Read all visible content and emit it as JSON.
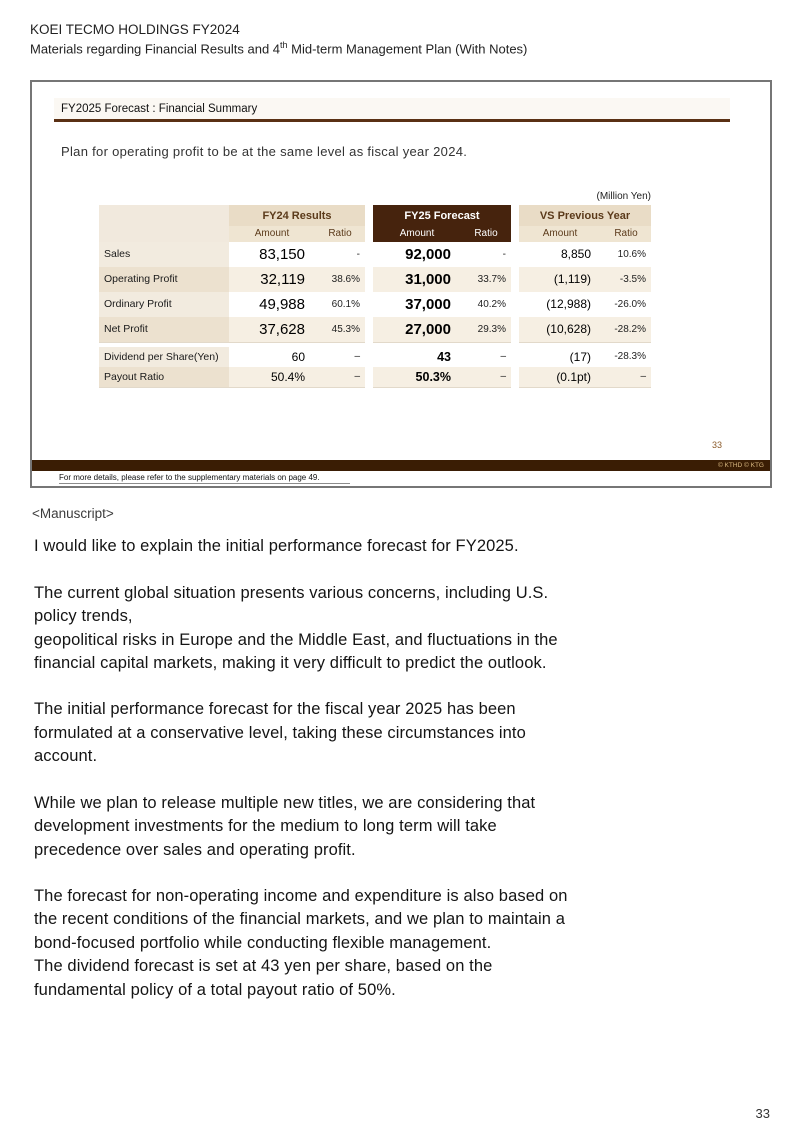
{
  "page": {
    "header_line1": "KOEI TECMO HOLDINGS FY2024",
    "header_line2_pre": "Materials regarding Financial Results and 4",
    "header_line2_sup": "th",
    "header_line2_post": " Mid-term Management Plan (With Notes)",
    "page_number": "33"
  },
  "slide": {
    "title": "FY2025 Forecast : Financial Summary",
    "subtitle": "Plan for operating profit to be at the same level as fiscal year 2024.",
    "unit_label": "(Million Yen)",
    "table": {
      "groups": [
        "FY24 Results",
        "FY25 Forecast",
        "VS Previous Year"
      ],
      "sub_headers": [
        "Amount",
        "Ratio",
        "Amount",
        "Ratio",
        "Amount",
        "Ratio"
      ],
      "rows": [
        {
          "label": "Sales",
          "cells": [
            "83,150",
            "-",
            "92,000",
            "-",
            "8,850",
            "10.6%"
          ]
        },
        {
          "label": "Operating Profit",
          "cells": [
            "32,119",
            "38.6%",
            "31,000",
            "33.7%",
            "(1,119)",
            "-3.5%"
          ]
        },
        {
          "label": "Ordinary Profit",
          "cells": [
            "49,988",
            "60.1%",
            "37,000",
            "40.2%",
            "(12,988)",
            "-26.0%"
          ]
        },
        {
          "label": "Net Profit",
          "cells": [
            "37,628",
            "45.3%",
            "27,000",
            "29.3%",
            "(10,628)",
            "-28.2%"
          ]
        },
        {
          "label": "Dividend per Share(Yen)",
          "cells": [
            "60",
            "–",
            "43",
            "–",
            "(17)",
            "-28.3%"
          ]
        },
        {
          "label": "Payout Ratio",
          "cells": [
            "50.4%",
            "–",
            "50.3%",
            "–",
            "(0.1pt)",
            "–"
          ]
        }
      ]
    },
    "slide_page_number": "33",
    "copyright": "© KTHD © KTG",
    "footnote": "For more details, please refer to the supplementary materials on page 49."
  },
  "manuscript": {
    "heading": "<Manuscript>",
    "paragraphs": [
      "I would like to explain the initial performance forecast for FY2025.",
      "The current global situation presents various concerns, including U.S.\npolicy trends,\ngeopolitical risks in Europe and the Middle East, and fluctuations in the\nfinancial capital markets, making it very difficult to predict the outlook.",
      "The initial performance forecast for the fiscal year 2025 has been\nformulated at a conservative level, taking these circumstances into\naccount.",
      "While we plan to release multiple new titles, we are considering that\ndevelopment investments for the medium to long term will take\nprecedence over sales and operating profit.",
      "The forecast for non-operating income and expenditure is also based on\nthe recent conditions of the financial markets, and we plan to maintain a\nbond-focused portfolio while conducting flexible management.\nThe dividend forecast is set at 43 yen per share, based on the\nfundamental policy of a total payout ratio of 50%."
    ]
  },
  "colors": {
    "dark_brown": "#46230d",
    "header_beige": "#e9dcc6",
    "bar_brown": "#3a1d04",
    "title_underline": "#5a3014"
  }
}
